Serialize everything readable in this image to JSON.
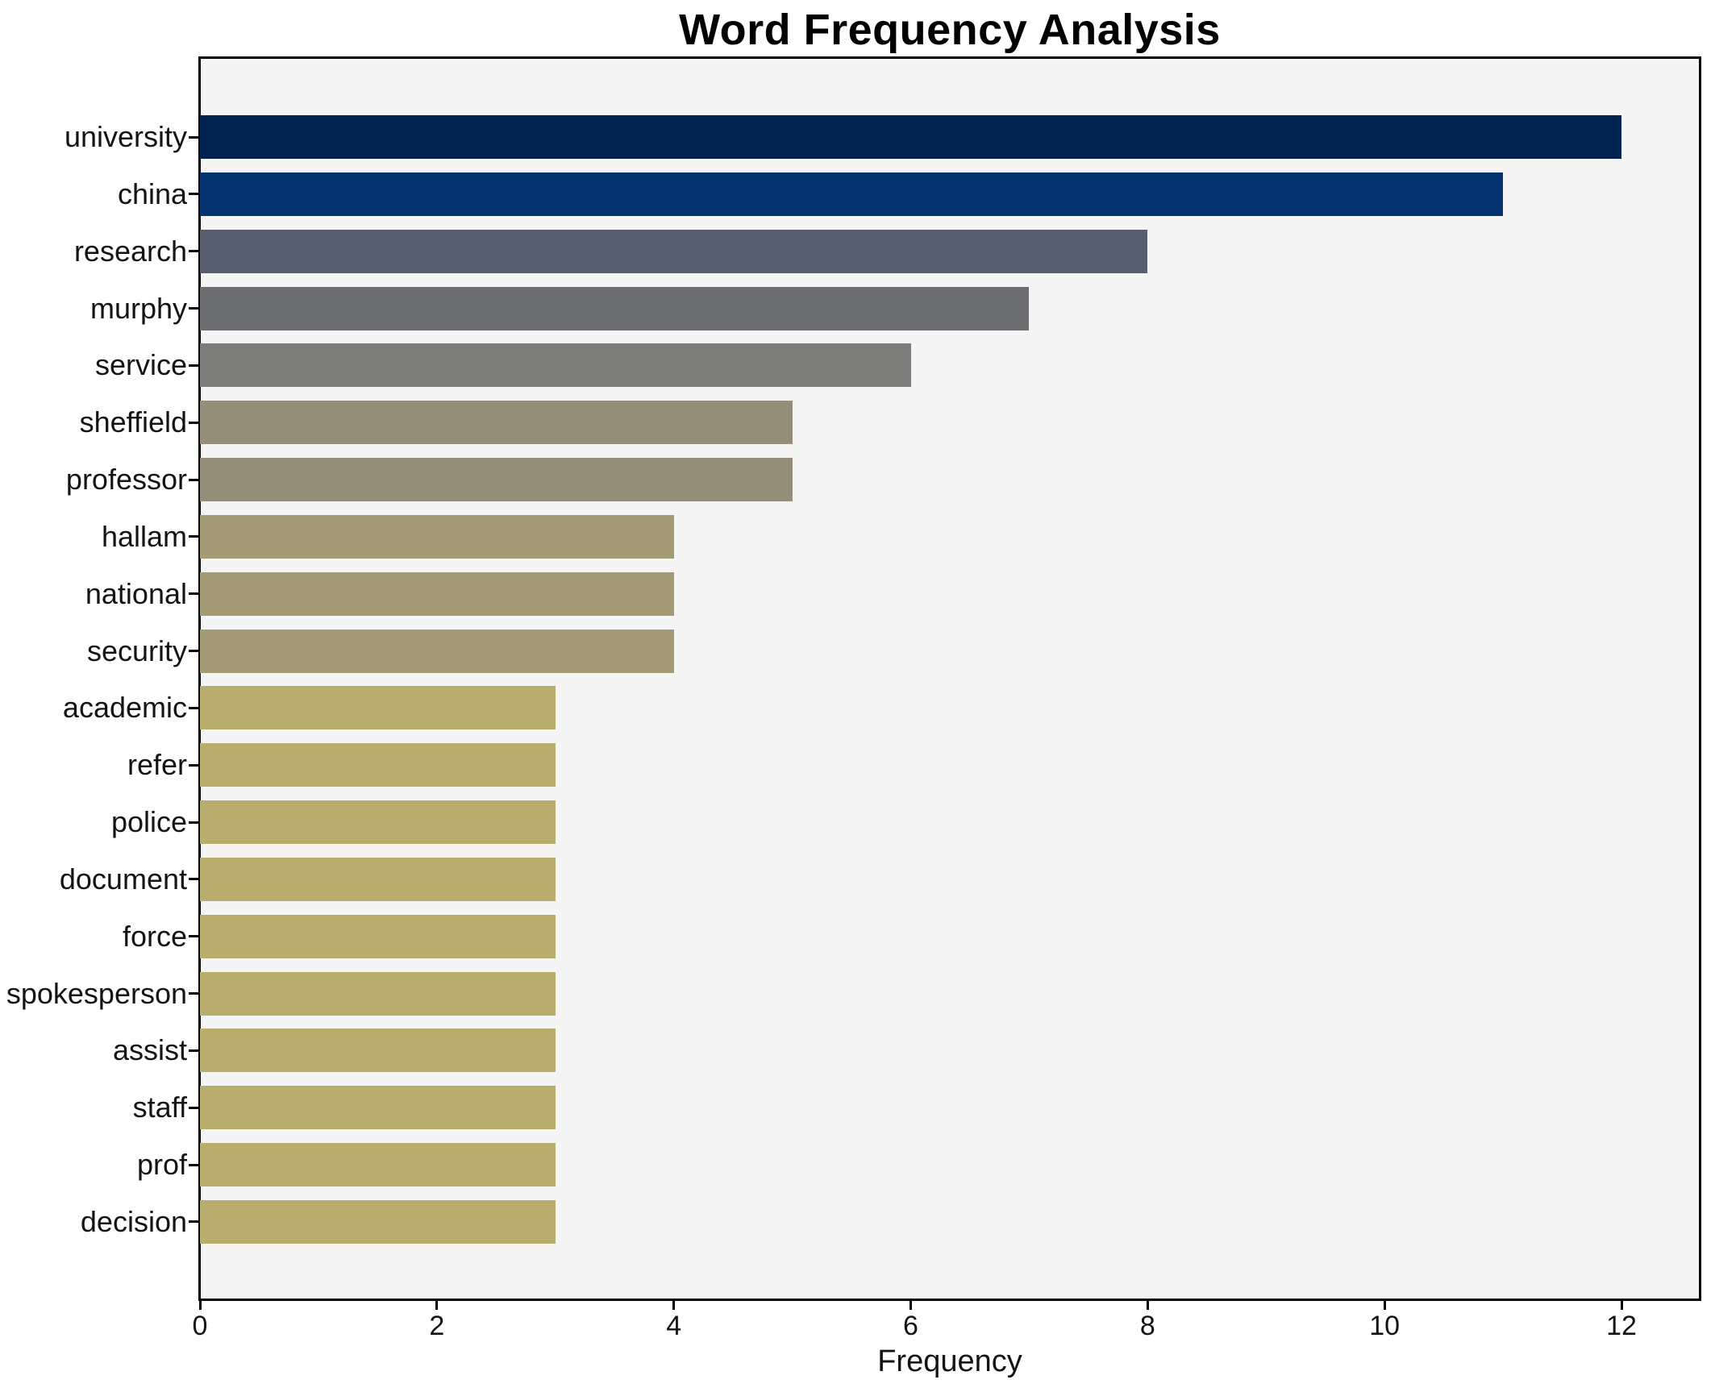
{
  "chart_data": {
    "type": "bar",
    "orientation": "horizontal",
    "title": "Word Frequency Analysis",
    "xlabel": "Frequency",
    "ylabel": "",
    "categories": [
      "university",
      "china",
      "research",
      "murphy",
      "service",
      "sheffield",
      "professor",
      "hallam",
      "national",
      "security",
      "academic",
      "refer",
      "police",
      "document",
      "force",
      "spokesperson",
      "assist",
      "staff",
      "prof",
      "decision"
    ],
    "values": [
      12,
      11,
      8,
      7,
      6,
      5,
      5,
      4,
      4,
      4,
      3,
      3,
      3,
      3,
      3,
      3,
      3,
      3,
      3,
      3
    ],
    "bar_colors": [
      "#00224e",
      "#04336f",
      "#575e6d",
      "#6d6e71",
      "#7c7c7a",
      "#948e78",
      "#948e78",
      "#a39a76",
      "#a39a76",
      "#a39a76",
      "#b8ad6c",
      "#b8ad6c",
      "#b8ad6c",
      "#b8ad6c",
      "#b8ad6c",
      "#b8ad6c",
      "#b8ad6c",
      "#b8ad6c",
      "#b8ad6c",
      "#b8ad6c"
    ],
    "xticks": [
      0,
      2,
      4,
      6,
      8,
      10,
      12
    ],
    "xlim": [
      0,
      12.66
    ],
    "grid": false,
    "legend": null,
    "plot_background": "#f5f5f6",
    "figure_background": "#ffffff",
    "spine_color": "#000000"
  }
}
